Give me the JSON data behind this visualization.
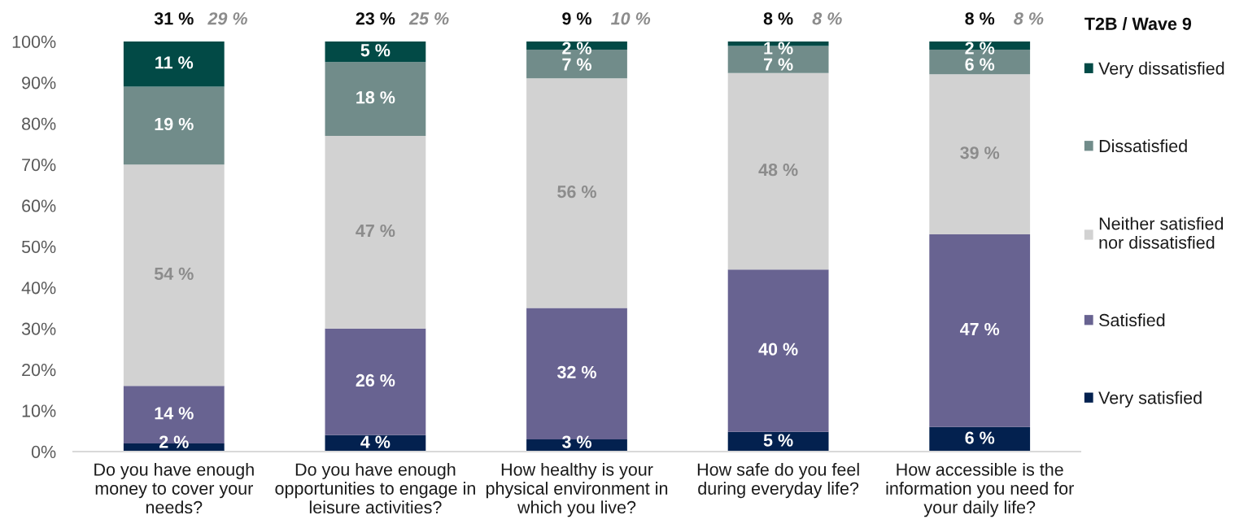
{
  "chart_data": {
    "type": "bar",
    "stacked": true,
    "categories": [
      "Do you have enough\nmoney to cover your\nneeds?",
      "Do you have enough\nopportunities to engage in\nleisure activities?",
      "How healthy is your\nphysical environment in\nwhich you live?",
      "How safe do you feel\nduring everyday life?",
      "How accessible is the\ninformation you need for\nyour daily life?"
    ],
    "series": [
      {
        "name": "Very satisfied",
        "color": "#03214f",
        "values": [
          2,
          4,
          3,
          4.8,
          6
        ],
        "value_labels": [
          "2 %",
          "4 %",
          "3 %",
          "5 %",
          "6 %"
        ]
      },
      {
        "name": "Satisfied",
        "color": "#686391",
        "values": [
          14,
          26,
          32,
          39.6,
          47
        ],
        "value_labels": [
          "14 %",
          "26 %",
          "32 %",
          "40 %",
          "47 %"
        ]
      },
      {
        "name": "Neither satisfied\nnor dissatisfied",
        "color": "#d2d2d2",
        "values": [
          54,
          47,
          56,
          47.9,
          39
        ],
        "value_labels": [
          "54 %",
          "47 %",
          "56 %",
          "48 %",
          "39 %"
        ]
      },
      {
        "name": "Dissatisfied",
        "color": "#718c8a",
        "values": [
          19,
          18,
          7,
          6.6,
          6
        ],
        "value_labels": [
          "19 %",
          "18 %",
          "7 %",
          "7 %",
          "6 %"
        ]
      },
      {
        "name": "Very dissatisfied",
        "color": "#024a46",
        "values": [
          11,
          5,
          2,
          1.1,
          2
        ],
        "value_labels": [
          "11 %",
          "5 %",
          "2 %",
          "1 %",
          "2 %"
        ]
      }
    ],
    "ylim": [
      0,
      100
    ],
    "yticks": [
      {
        "value": 0,
        "label": "0%"
      },
      {
        "value": 10,
        "label": "10%"
      },
      {
        "value": 20,
        "label": "20%"
      },
      {
        "value": 30,
        "label": "30%"
      },
      {
        "value": 40,
        "label": "40%"
      },
      {
        "value": 50,
        "label": "50%"
      },
      {
        "value": 60,
        "label": "60%"
      },
      {
        "value": 70,
        "label": "70%"
      },
      {
        "value": 80,
        "label": "80%"
      },
      {
        "value": 90,
        "label": "90%"
      },
      {
        "value": 100,
        "label": "100%"
      }
    ],
    "legend": "right",
    "legend_title": "T2B / Wave 9",
    "annotations": [
      {
        "text": "31 %",
        "x": "Do you have enough\nmoney to cover your\nneeds?",
        "y": 100
      },
      {
        "text": "29 %",
        "x": "Do you have enough\nmoney to cover your\nneeds?",
        "y": 100
      },
      {
        "text": "23 %",
        "x": "Do you have enough\nopportunities to engage in\nleisure activities?",
        "y": 100
      },
      {
        "text": "25 %",
        "x": "Do you have enough\nopportunities to engage in\nleisure activities?",
        "y": 100
      },
      {
        "text": "9 %",
        "x": "How healthy is your\nphysical environment in\nwhich you live?",
        "y": 100
      },
      {
        "text": "10 %",
        "x": "How healthy is your\nphysical environment in\nwhich you live?",
        "y": 100
      },
      {
        "text": "8 %",
        "x": "How safe do you feel\nduring everyday life?",
        "y": 100
      },
      {
        "text": "8 %",
        "x": "How safe do you feel\nduring everyday life?",
        "y": 100
      },
      {
        "text": "8 %",
        "x": "How accessible is the\ninformation you need for\nyour daily life?",
        "y": 100
      },
      {
        "text": "8 %",
        "x": "How accessible is the\ninformation you need for\nyour daily life?",
        "y": 100
      }
    ]
  }
}
